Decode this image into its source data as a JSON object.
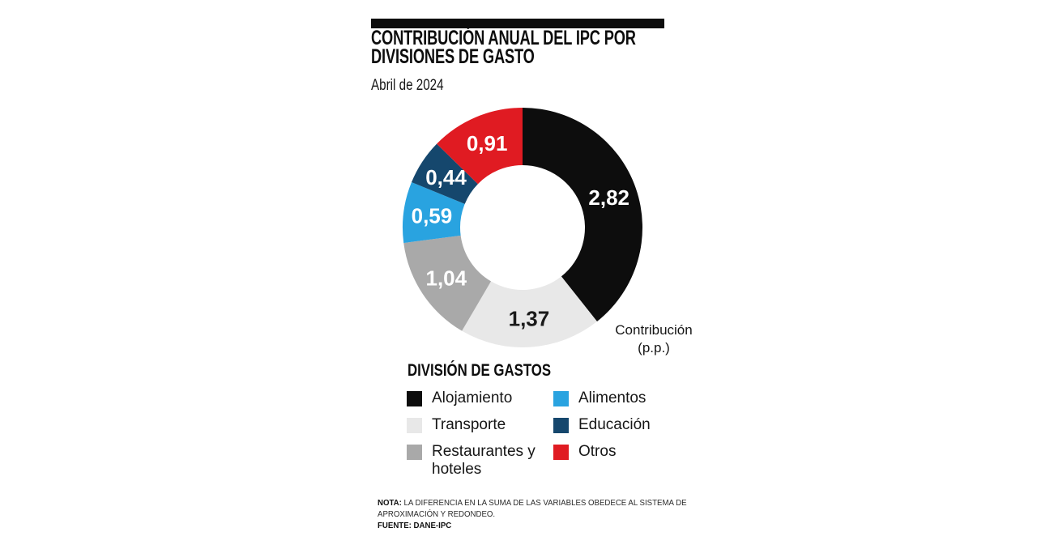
{
  "header": {
    "title_line1": "CONTRIBUCIÓN ANUAL DEL IPC POR",
    "title_line2": "DIVISIONES DE GASTO",
    "subtitle": "Abril de 2024"
  },
  "chart_data": {
    "type": "pie",
    "variant": "donut",
    "title": "CONTRIBUCIÓN ANUAL DEL IPC POR DIVISIONES DE GASTO",
    "subtitle": "Abril de 2024",
    "unit_label": "Contribución (p.p.)",
    "start_angle_deg": 0,
    "direction": "clockwise",
    "slices": [
      {
        "label": "Alojamiento",
        "value": 2.82,
        "display": "2,82",
        "color": "#0d0d0d",
        "text_color": "#ffffff"
      },
      {
        "label": "Transporte",
        "value": 1.37,
        "display": "1,37",
        "color": "#e8e8e8",
        "text_color": "#1a1a1a"
      },
      {
        "label": "Restaurantes y hoteles",
        "value": 1.04,
        "display": "1,04",
        "color": "#a9a9a9",
        "text_color": "#ffffff"
      },
      {
        "label": "Alimentos",
        "value": 0.59,
        "display": "0,59",
        "color": "#29a3e0",
        "text_color": "#ffffff"
      },
      {
        "label": "Educación",
        "value": 0.44,
        "display": "0,44",
        "color": "#15476d",
        "text_color": "#ffffff"
      },
      {
        "label": "Otros",
        "value": 0.91,
        "display": "0,91",
        "color": "#e01b22",
        "text_color": "#ffffff"
      }
    ]
  },
  "annotation": {
    "line1": "Contribución",
    "line2": "(p.p.)"
  },
  "legend": {
    "title": "DIVISIÓN DE GASTOS",
    "columns": [
      [
        {
          "label": "Alojamiento",
          "color": "#0d0d0d"
        },
        {
          "label": "Transporte",
          "color": "#e8e8e8"
        },
        {
          "label": "Restaurantes y hoteles",
          "color": "#a9a9a9"
        }
      ],
      [
        {
          "label": "Alimentos",
          "color": "#29a3e0"
        },
        {
          "label": "Educación",
          "color": "#15476d"
        },
        {
          "label": "Otros",
          "color": "#e01b22"
        }
      ]
    ]
  },
  "footer": {
    "note_label": "NOTA:",
    "note_line1": "LA DIFERENCIA EN LA SUMA DE LAS VARIABLES OBEDECE AL SISTEMA DE",
    "note_line2": "APROXIMACIÓN Y REDONDEO.",
    "source": "FUENTE: DANE-IPC"
  }
}
